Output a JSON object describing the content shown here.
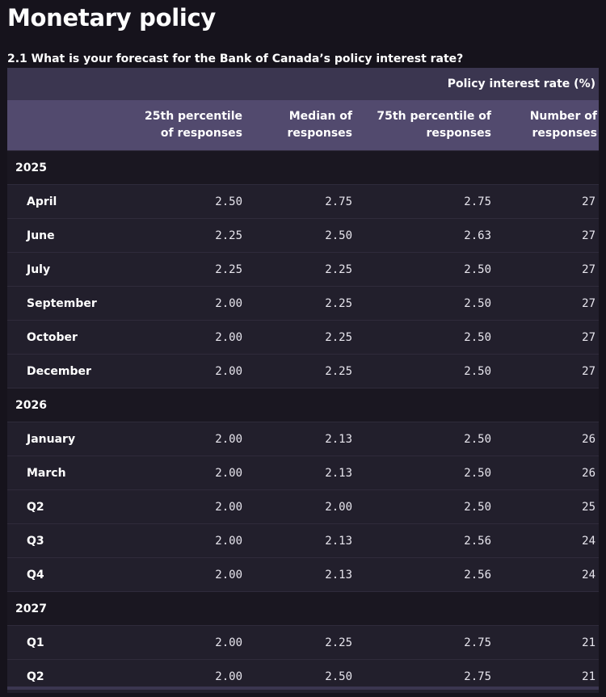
{
  "page_title": "Monetary policy",
  "question": "2.1 What is your forecast for the Bank of Canada’s policy interest rate?",
  "table": {
    "unit_label": "Policy interest rate (%)",
    "columns": [
      "25th percentile of responses",
      "Median of responses",
      "75th percentile of responses",
      "Number of responses"
    ],
    "groups": [
      {
        "year": "2025",
        "rows": [
          {
            "label": "April",
            "p25": "2.50",
            "median": "2.75",
            "p75": "2.75",
            "n": "27"
          },
          {
            "label": "June",
            "p25": "2.25",
            "median": "2.50",
            "p75": "2.63",
            "n": "27"
          },
          {
            "label": "July",
            "p25": "2.25",
            "median": "2.25",
            "p75": "2.50",
            "n": "27"
          },
          {
            "label": "September",
            "p25": "2.00",
            "median": "2.25",
            "p75": "2.50",
            "n": "27"
          },
          {
            "label": "October",
            "p25": "2.00",
            "median": "2.25",
            "p75": "2.50",
            "n": "27"
          },
          {
            "label": "December",
            "p25": "2.00",
            "median": "2.25",
            "p75": "2.50",
            "n": "27"
          }
        ]
      },
      {
        "year": "2026",
        "rows": [
          {
            "label": "January",
            "p25": "2.00",
            "median": "2.13",
            "p75": "2.50",
            "n": "26"
          },
          {
            "label": "March",
            "p25": "2.00",
            "median": "2.13",
            "p75": "2.50",
            "n": "26"
          },
          {
            "label": "Q2",
            "p25": "2.00",
            "median": "2.00",
            "p75": "2.50",
            "n": "25"
          },
          {
            "label": "Q3",
            "p25": "2.00",
            "median": "2.13",
            "p75": "2.56",
            "n": "24"
          },
          {
            "label": "Q4",
            "p25": "2.00",
            "median": "2.13",
            "p75": "2.56",
            "n": "24"
          }
        ]
      },
      {
        "year": "2027",
        "rows": [
          {
            "label": "Q1",
            "p25": "2.00",
            "median": "2.25",
            "p75": "2.75",
            "n": "21"
          },
          {
            "label": "Q2",
            "p25": "2.00",
            "median": "2.50",
            "p75": "2.75",
            "n": "21"
          }
        ]
      }
    ]
  }
}
